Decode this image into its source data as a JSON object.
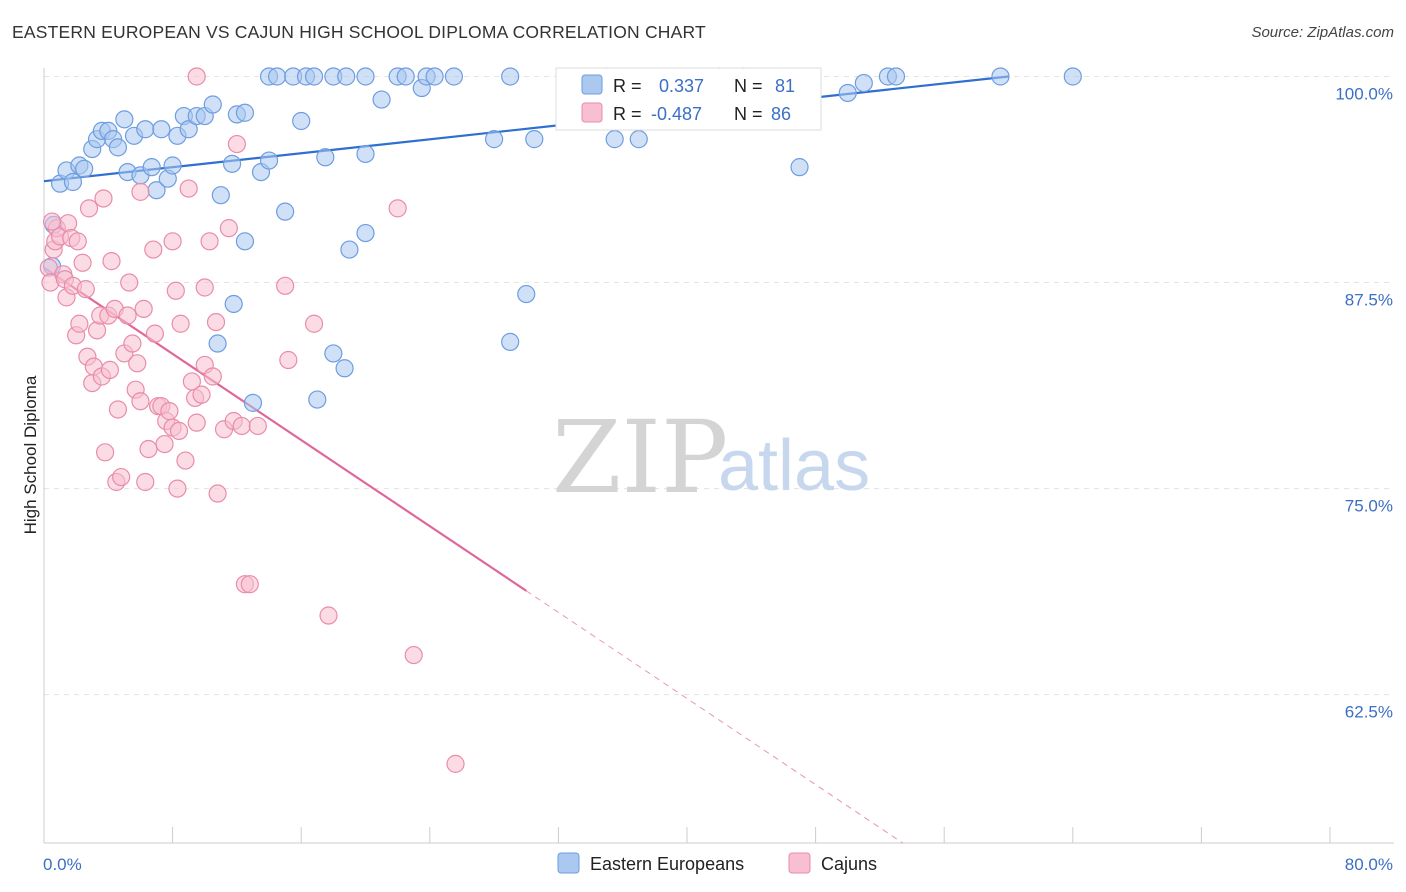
{
  "title": "EASTERN EUROPEAN VS CAJUN HIGH SCHOOL DIPLOMA CORRELATION CHART",
  "source": "Source: ZipAtlas.com",
  "watermark": {
    "zip": "ZIP",
    "atlas": "atlas"
  },
  "colors": {
    "blue_fill": "#aac8f0",
    "blue_stroke": "#6e9de0",
    "blue_line": "#2f6fd0",
    "pink_fill": "#f7bfd0",
    "pink_stroke": "#e98cab",
    "pink_line": "#e0679a",
    "grid": "#e3e3e3",
    "axis_text": "#3b6fc4"
  },
  "legend": {
    "r_label": "R =",
    "n_label": "N =",
    "rows": [
      {
        "r": "0.337",
        "n": "81"
      },
      {
        "r": "-0.487",
        "n": "86"
      }
    ]
  },
  "chart_data": {
    "type": "scatter",
    "ylabel": "High School Diploma",
    "xlim": [
      0.0,
      0.8
    ],
    "ylim": [
      0.535,
      1.01
    ],
    "x_tick_labels": [
      "0.0%",
      "80.0%"
    ],
    "y_ticks": [
      {
        "value": 1.0,
        "label": "100.0%"
      },
      {
        "value": 0.875,
        "label": "87.5%"
      },
      {
        "value": 0.75,
        "label": "75.0%"
      },
      {
        "value": 0.625,
        "label": "62.5%"
      }
    ],
    "series": [
      {
        "name": "Eastern Europeans",
        "color": "#aac8f0",
        "trend": {
          "x": [
            0.0,
            0.6
          ],
          "y": [
            0.9365,
            1.0
          ],
          "dashed_to": 0.6
        },
        "points": [
          [
            0.006,
            0.91
          ],
          [
            0.005,
            0.885
          ],
          [
            0.01,
            0.935
          ],
          [
            0.014,
            0.943
          ],
          [
            0.018,
            0.936
          ],
          [
            0.022,
            0.946
          ],
          [
            0.025,
            0.944
          ],
          [
            0.03,
            0.956
          ],
          [
            0.033,
            0.962
          ],
          [
            0.036,
            0.967
          ],
          [
            0.04,
            0.967
          ],
          [
            0.043,
            0.962
          ],
          [
            0.046,
            0.957
          ],
          [
            0.05,
            0.974
          ],
          [
            0.052,
            0.942
          ],
          [
            0.056,
            0.964
          ],
          [
            0.06,
            0.94
          ],
          [
            0.063,
            0.968
          ],
          [
            0.067,
            0.945
          ],
          [
            0.07,
            0.931
          ],
          [
            0.073,
            0.968
          ],
          [
            0.077,
            0.938
          ],
          [
            0.08,
            0.946
          ],
          [
            0.083,
            0.964
          ],
          [
            0.087,
            0.976
          ],
          [
            0.09,
            0.968
          ],
          [
            0.095,
            0.976
          ],
          [
            0.1,
            0.976
          ],
          [
            0.105,
            0.983
          ],
          [
            0.11,
            0.928
          ],
          [
            0.117,
            0.947
          ],
          [
            0.12,
            0.977
          ],
          [
            0.125,
            0.978
          ],
          [
            0.135,
            0.942
          ],
          [
            0.14,
            0.949
          ],
          [
            0.125,
            0.9
          ],
          [
            0.118,
            0.862
          ],
          [
            0.108,
            0.838
          ],
          [
            0.13,
            0.802
          ],
          [
            0.15,
            0.918
          ],
          [
            0.16,
            0.973
          ],
          [
            0.175,
            0.951
          ],
          [
            0.19,
            0.895
          ],
          [
            0.2,
            0.905
          ],
          [
            0.18,
            0.832
          ],
          [
            0.187,
            0.823
          ],
          [
            0.17,
            0.804
          ],
          [
            0.2,
            0.953
          ],
          [
            0.21,
            0.986
          ],
          [
            0.235,
            0.993
          ],
          [
            0.28,
            0.962
          ],
          [
            0.29,
            0.839
          ],
          [
            0.3,
            0.868
          ],
          [
            0.305,
            0.962
          ],
          [
            0.34,
            0.979
          ],
          [
            0.355,
            0.962
          ],
          [
            0.37,
            0.962
          ],
          [
            0.47,
            0.945
          ],
          [
            0.5,
            0.99
          ],
          [
            0.51,
            0.996
          ],
          [
            0.14,
            1.0
          ],
          [
            0.145,
            1.0
          ],
          [
            0.155,
            1.0
          ],
          [
            0.163,
            1.0
          ],
          [
            0.168,
            1.0
          ],
          [
            0.18,
            1.0
          ],
          [
            0.188,
            1.0
          ],
          [
            0.2,
            1.0
          ],
          [
            0.22,
            1.0
          ],
          [
            0.225,
            1.0
          ],
          [
            0.238,
            1.0
          ],
          [
            0.243,
            1.0
          ],
          [
            0.255,
            1.0
          ],
          [
            0.29,
            1.0
          ],
          [
            0.35,
            1.0
          ],
          [
            0.42,
            1.0
          ],
          [
            0.435,
            1.0
          ],
          [
            0.525,
            1.0
          ],
          [
            0.53,
            1.0
          ],
          [
            0.595,
            1.0
          ],
          [
            0.64,
            1.0
          ]
        ]
      },
      {
        "name": "Cajuns",
        "color": "#f7bfd0",
        "trend": {
          "x": [
            0.0,
            0.3
          ],
          "y": [
            0.884,
            0.688
          ],
          "dashed_to": 0.6
        },
        "points": [
          [
            0.003,
            0.884
          ],
          [
            0.004,
            0.875
          ],
          [
            0.006,
            0.895
          ],
          [
            0.007,
            0.9
          ],
          [
            0.008,
            0.908
          ],
          [
            0.01,
            0.903
          ],
          [
            0.012,
            0.88
          ],
          [
            0.013,
            0.877
          ],
          [
            0.014,
            0.866
          ],
          [
            0.015,
            0.911
          ],
          [
            0.017,
            0.902
          ],
          [
            0.018,
            0.873
          ],
          [
            0.02,
            0.843
          ],
          [
            0.021,
            0.9
          ],
          [
            0.022,
            0.85
          ],
          [
            0.024,
            0.887
          ],
          [
            0.026,
            0.871
          ],
          [
            0.027,
            0.83
          ],
          [
            0.028,
            0.92
          ],
          [
            0.03,
            0.814
          ],
          [
            0.031,
            0.824
          ],
          [
            0.033,
            0.846
          ],
          [
            0.035,
            0.855
          ],
          [
            0.036,
            0.818
          ],
          [
            0.037,
            0.926
          ],
          [
            0.038,
            0.772
          ],
          [
            0.04,
            0.855
          ],
          [
            0.041,
            0.822
          ],
          [
            0.042,
            0.888
          ],
          [
            0.044,
            0.859
          ],
          [
            0.045,
            0.754
          ],
          [
            0.046,
            0.798
          ],
          [
            0.048,
            0.757
          ],
          [
            0.05,
            0.832
          ],
          [
            0.052,
            0.855
          ],
          [
            0.053,
            0.875
          ],
          [
            0.055,
            0.838
          ],
          [
            0.057,
            0.81
          ],
          [
            0.058,
            0.826
          ],
          [
            0.06,
            0.803
          ],
          [
            0.06,
            0.93
          ],
          [
            0.062,
            0.859
          ],
          [
            0.063,
            0.754
          ],
          [
            0.065,
            0.774
          ],
          [
            0.068,
            0.895
          ],
          [
            0.069,
            0.844
          ],
          [
            0.071,
            0.8
          ],
          [
            0.073,
            0.8
          ],
          [
            0.075,
            0.777
          ],
          [
            0.076,
            0.791
          ],
          [
            0.078,
            0.797
          ],
          [
            0.08,
            0.787
          ],
          [
            0.08,
            0.9
          ],
          [
            0.082,
            0.87
          ],
          [
            0.083,
            0.75
          ],
          [
            0.084,
            0.785
          ],
          [
            0.085,
            0.85
          ],
          [
            0.088,
            0.767
          ],
          [
            0.09,
            0.932
          ],
          [
            0.092,
            0.815
          ],
          [
            0.094,
            0.805
          ],
          [
            0.095,
            0.79
          ],
          [
            0.095,
            1.0
          ],
          [
            0.098,
            0.807
          ],
          [
            0.1,
            0.872
          ],
          [
            0.1,
            0.825
          ],
          [
            0.103,
            0.9
          ],
          [
            0.105,
            0.818
          ],
          [
            0.107,
            0.851
          ],
          [
            0.108,
            0.747
          ],
          [
            0.112,
            0.786
          ],
          [
            0.115,
            0.908
          ],
          [
            0.118,
            0.791
          ],
          [
            0.12,
            0.959
          ],
          [
            0.123,
            0.788
          ],
          [
            0.125,
            0.692
          ],
          [
            0.128,
            0.692
          ],
          [
            0.133,
            0.788
          ],
          [
            0.15,
            0.873
          ],
          [
            0.152,
            0.828
          ],
          [
            0.168,
            0.85
          ],
          [
            0.177,
            0.673
          ],
          [
            0.22,
            0.92
          ],
          [
            0.23,
            0.649
          ],
          [
            0.256,
            0.583
          ],
          [
            0.005,
            0.912
          ]
        ]
      }
    ]
  }
}
